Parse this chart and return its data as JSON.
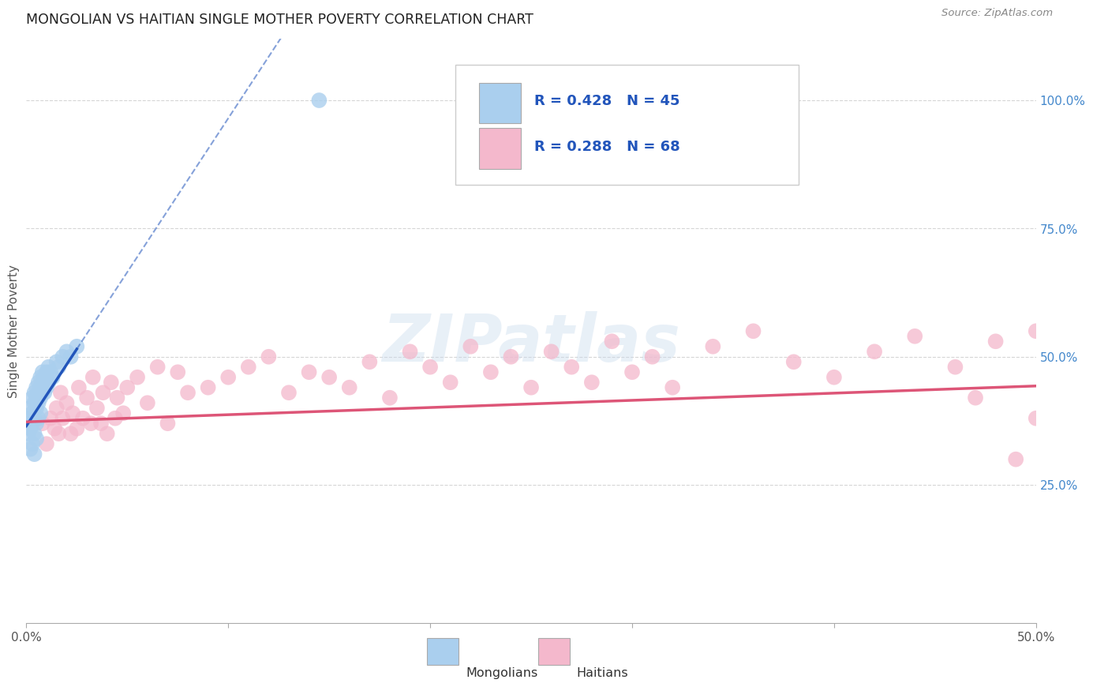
{
  "title": "MONGOLIAN VS HAITIAN SINGLE MOTHER POVERTY CORRELATION CHART",
  "source": "Source: ZipAtlas.com",
  "ylabel": "Single Mother Poverty",
  "xlim": [
    0.0,
    0.5
  ],
  "ylim": [
    -0.02,
    1.12
  ],
  "xticks": [
    0.0,
    0.1,
    0.2,
    0.3,
    0.4,
    0.5
  ],
  "xtick_labels": [
    "0.0%",
    "",
    "",
    "",
    "",
    "50.0%"
  ],
  "yticks": [
    0.25,
    0.5,
    0.75,
    1.0
  ],
  "ytick_labels": [
    "25.0%",
    "50.0%",
    "75.0%",
    "100.0%"
  ],
  "mongolian_R": 0.428,
  "mongolian_N": 45,
  "haitian_R": 0.288,
  "haitian_N": 68,
  "mongolian_color": "#aacfee",
  "haitian_color": "#f4b8cc",
  "mongolian_line_color": "#2255bb",
  "haitian_line_color": "#dd5577",
  "background_color": "#ffffff",
  "watermark": "ZIPatlas",
  "mongo_x": [
    0.001,
    0.001,
    0.002,
    0.002,
    0.002,
    0.003,
    0.003,
    0.003,
    0.003,
    0.004,
    0.004,
    0.004,
    0.004,
    0.004,
    0.005,
    0.005,
    0.005,
    0.005,
    0.005,
    0.006,
    0.006,
    0.006,
    0.006,
    0.007,
    0.007,
    0.007,
    0.007,
    0.008,
    0.008,
    0.008,
    0.009,
    0.009,
    0.01,
    0.01,
    0.011,
    0.011,
    0.012,
    0.013,
    0.015,
    0.016,
    0.018,
    0.02,
    0.022,
    0.025,
    0.145
  ],
  "mongo_y": [
    0.38,
    0.35,
    0.4,
    0.36,
    0.32,
    0.42,
    0.39,
    0.37,
    0.33,
    0.43,
    0.41,
    0.38,
    0.35,
    0.31,
    0.44,
    0.42,
    0.4,
    0.37,
    0.34,
    0.45,
    0.43,
    0.41,
    0.38,
    0.46,
    0.44,
    0.42,
    0.39,
    0.47,
    0.45,
    0.43,
    0.46,
    0.43,
    0.47,
    0.44,
    0.48,
    0.45,
    0.47,
    0.46,
    0.49,
    0.48,
    0.5,
    0.51,
    0.5,
    0.52,
    1.0
  ],
  "haiti_x": [
    0.008,
    0.01,
    0.012,
    0.014,
    0.015,
    0.016,
    0.017,
    0.018,
    0.02,
    0.022,
    0.023,
    0.025,
    0.026,
    0.028,
    0.03,
    0.032,
    0.033,
    0.035,
    0.037,
    0.038,
    0.04,
    0.042,
    0.044,
    0.045,
    0.048,
    0.05,
    0.055,
    0.06,
    0.065,
    0.07,
    0.075,
    0.08,
    0.09,
    0.1,
    0.11,
    0.12,
    0.13,
    0.14,
    0.15,
    0.16,
    0.17,
    0.18,
    0.19,
    0.2,
    0.21,
    0.22,
    0.23,
    0.24,
    0.25,
    0.26,
    0.27,
    0.28,
    0.29,
    0.3,
    0.31,
    0.32,
    0.34,
    0.36,
    0.38,
    0.4,
    0.42,
    0.44,
    0.46,
    0.47,
    0.48,
    0.49,
    0.5,
    0.5
  ],
  "haiti_y": [
    0.37,
    0.33,
    0.38,
    0.36,
    0.4,
    0.35,
    0.43,
    0.38,
    0.41,
    0.35,
    0.39,
    0.36,
    0.44,
    0.38,
    0.42,
    0.37,
    0.46,
    0.4,
    0.37,
    0.43,
    0.35,
    0.45,
    0.38,
    0.42,
    0.39,
    0.44,
    0.46,
    0.41,
    0.48,
    0.37,
    0.47,
    0.43,
    0.44,
    0.46,
    0.48,
    0.5,
    0.43,
    0.47,
    0.46,
    0.44,
    0.49,
    0.42,
    0.51,
    0.48,
    0.45,
    0.52,
    0.47,
    0.5,
    0.44,
    0.51,
    0.48,
    0.45,
    0.53,
    0.47,
    0.5,
    0.44,
    0.52,
    0.55,
    0.49,
    0.46,
    0.51,
    0.54,
    0.48,
    0.42,
    0.53,
    0.3,
    0.55,
    0.38
  ],
  "legend_mongo_label": "R = 0.428   N = 45",
  "legend_haiti_label": "R = 0.288   N = 68"
}
